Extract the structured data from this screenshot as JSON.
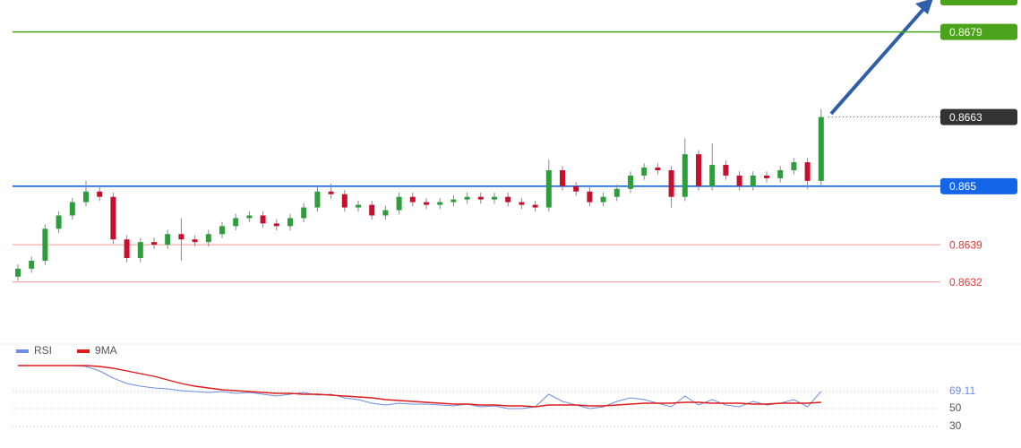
{
  "chart_data": [
    {
      "type": "candlestick",
      "open": [
        0.8633,
        0.86345,
        0.8636,
        0.8642,
        0.86445,
        0.8647,
        0.8649,
        0.8648,
        0.864,
        0.86365,
        0.86395,
        0.8639,
        0.8641,
        0.864,
        0.86395,
        0.8641,
        0.86425,
        0.8644,
        0.86445,
        0.8643,
        0.86425,
        0.8644,
        0.8646,
        0.8649,
        0.86485,
        0.8646,
        0.86465,
        0.86445,
        0.86455,
        0.8648,
        0.8647,
        0.86465,
        0.8647,
        0.86475,
        0.8648,
        0.86475,
        0.8648,
        0.8647,
        0.86465,
        0.8646,
        0.8653,
        0.865,
        0.8649,
        0.8647,
        0.8648,
        0.86495,
        0.8652,
        0.86535,
        0.8653,
        0.8648,
        0.8656,
        0.865,
        0.8654,
        0.8652,
        0.865,
        0.8652,
        0.86515,
        0.8653,
        0.86545,
        0.8651
      ],
      "high": [
        0.86353,
        0.86368,
        0.86428,
        0.86453,
        0.86478,
        0.8651,
        0.86498,
        0.86488,
        0.86408,
        0.86403,
        0.86403,
        0.86418,
        0.8644,
        0.86408,
        0.86418,
        0.86433,
        0.86448,
        0.86453,
        0.86453,
        0.86438,
        0.86448,
        0.86468,
        0.86498,
        0.86505,
        0.86493,
        0.86473,
        0.86473,
        0.86463,
        0.86488,
        0.86488,
        0.86478,
        0.86478,
        0.86483,
        0.86488,
        0.86488,
        0.86488,
        0.86488,
        0.86478,
        0.86473,
        0.8655,
        0.86538,
        0.86508,
        0.86498,
        0.86488,
        0.86503,
        0.86528,
        0.86543,
        0.86543,
        0.86538,
        0.8659,
        0.86568,
        0.8658,
        0.86548,
        0.86528,
        0.86528,
        0.86528,
        0.86538,
        0.86553,
        0.86553,
        0.86645
      ],
      "low": [
        0.86322,
        0.86337,
        0.86352,
        0.86412,
        0.86437,
        0.86462,
        0.86472,
        0.86392,
        0.86357,
        0.86357,
        0.86382,
        0.86382,
        0.8636,
        0.86387,
        0.86387,
        0.86402,
        0.86417,
        0.86432,
        0.86422,
        0.86417,
        0.86417,
        0.86432,
        0.86452,
        0.86477,
        0.86452,
        0.86452,
        0.86437,
        0.86437,
        0.86447,
        0.86462,
        0.86457,
        0.86457,
        0.86462,
        0.86467,
        0.86467,
        0.86467,
        0.86462,
        0.86457,
        0.86452,
        0.86452,
        0.86492,
        0.86482,
        0.86462,
        0.86462,
        0.86472,
        0.86487,
        0.86512,
        0.86522,
        0.8646,
        0.86472,
        0.86492,
        0.86492,
        0.86512,
        0.86492,
        0.86492,
        0.86507,
        0.86507,
        0.86522,
        0.86495,
        0.86502
      ],
      "close": [
        0.86345,
        0.8636,
        0.8642,
        0.86445,
        0.8647,
        0.8649,
        0.8648,
        0.864,
        0.86365,
        0.86395,
        0.8639,
        0.8641,
        0.864,
        0.86395,
        0.8641,
        0.86425,
        0.8644,
        0.86445,
        0.8643,
        0.86425,
        0.8644,
        0.8646,
        0.8649,
        0.86485,
        0.8646,
        0.86465,
        0.86445,
        0.86455,
        0.8648,
        0.8647,
        0.86465,
        0.8647,
        0.86475,
        0.8648,
        0.86475,
        0.8648,
        0.8647,
        0.86465,
        0.8646,
        0.8653,
        0.865,
        0.8649,
        0.8647,
        0.8648,
        0.86495,
        0.8652,
        0.86535,
        0.8653,
        0.8648,
        0.8656,
        0.865,
        0.8654,
        0.8652,
        0.865,
        0.8652,
        0.86515,
        0.8653,
        0.86545,
        0.8651,
        0.8663
      ],
      "up_color": "#2e9e3c",
      "down_color": "#c8102e",
      "ylim": [
        0.8621,
        0.8685
      ],
      "levels": [
        {
          "value": 0.8679,
          "color": "#4aa31a",
          "boxed": true
        },
        {
          "value": 0.8663,
          "color": "#333333",
          "boxed": true,
          "dotted": true
        },
        {
          "value": 0.865,
          "color": "#1565e8",
          "boxed": true
        },
        {
          "value": 0.8639,
          "color": "#e63333",
          "boxed": false
        },
        {
          "value": 0.8632,
          "color": "#e63333",
          "boxed": false
        }
      ]
    },
    {
      "type": "line",
      "series": [
        {
          "name": "RSI",
          "color": "#6a8ee0",
          "values": [
            98,
            98,
            98,
            98,
            98,
            97,
            92,
            84,
            78,
            75,
            73,
            72,
            70,
            69,
            68,
            69,
            67,
            68,
            66,
            64,
            66,
            68,
            65,
            66,
            62,
            60,
            56,
            54,
            56,
            55,
            55,
            54,
            53,
            55,
            52,
            53,
            50,
            50,
            52,
            66,
            58,
            54,
            50,
            52,
            58,
            62,
            60,
            56,
            52,
            64,
            54,
            60,
            54,
            52,
            58,
            54,
            56,
            60,
            52,
            69.11
          ]
        },
        {
          "name": "9MA",
          "color": "#e01b1b",
          "values": [
            98,
            98,
            98,
            98,
            98,
            98,
            97,
            95,
            92,
            89,
            86,
            82,
            78,
            75,
            73,
            71,
            70,
            69,
            68,
            67,
            67,
            66,
            66,
            65,
            64,
            63,
            62,
            60,
            59,
            58,
            57,
            56,
            55,
            55,
            54,
            54,
            53,
            53,
            52,
            54,
            54,
            54,
            53,
            53,
            54,
            55,
            56,
            56,
            56,
            57,
            57,
            56,
            56,
            56,
            55,
            55,
            56,
            56,
            56,
            57
          ]
        }
      ],
      "ylim": [
        24,
        100
      ],
      "yticks": [
        69.11,
        50,
        30
      ]
    }
  ]
}
